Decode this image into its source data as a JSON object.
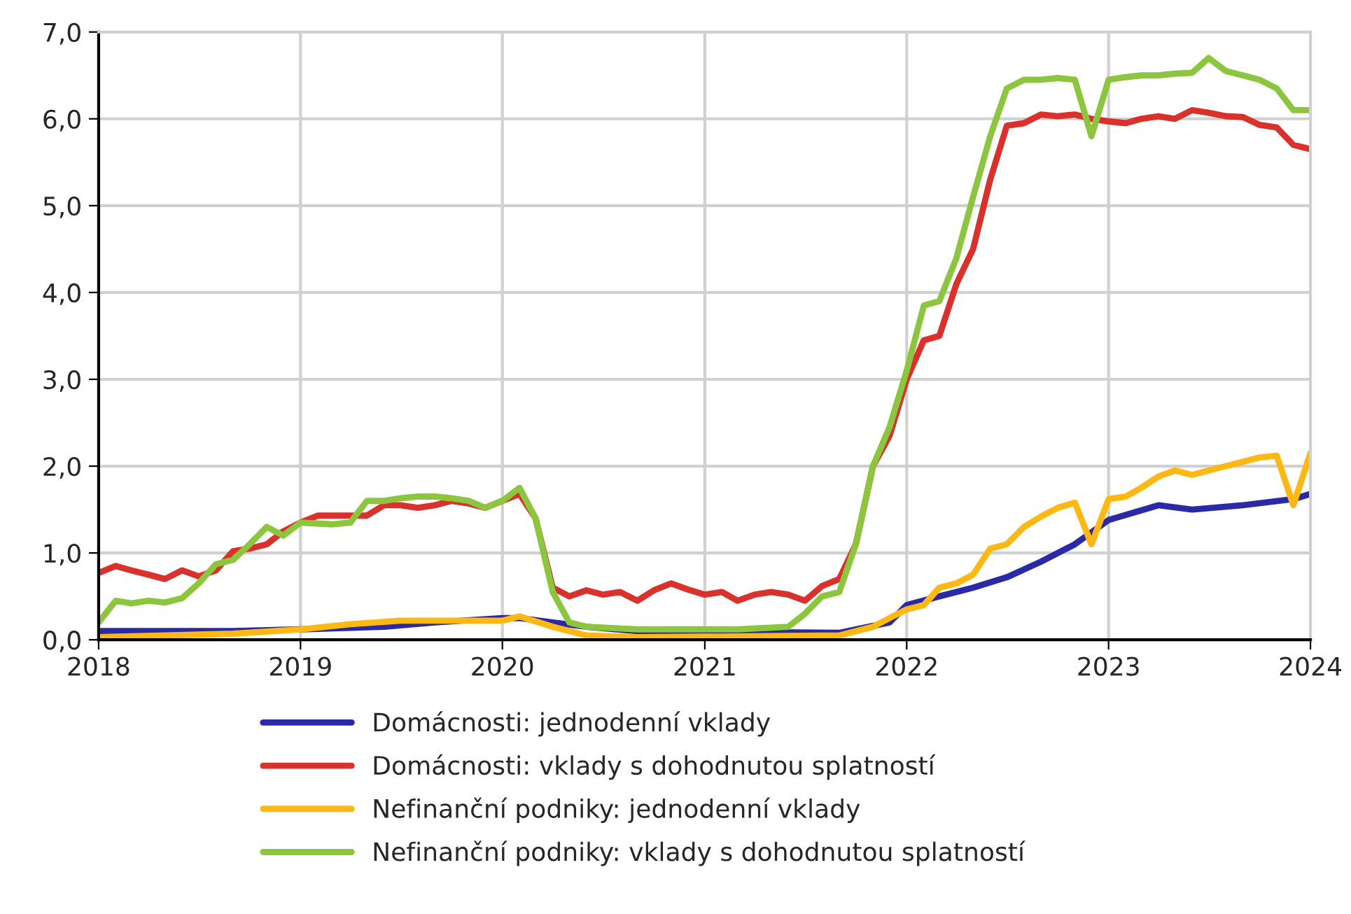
{
  "chart_data": {
    "type": "line",
    "ylim": [
      0,
      7
    ],
    "yticks": [
      {
        "value": 0,
        "label": "0,0"
      },
      {
        "value": 1,
        "label": "1,0"
      },
      {
        "value": 2,
        "label": "2,0"
      },
      {
        "value": 3,
        "label": "3,0"
      },
      {
        "value": 4,
        "label": "4,0"
      },
      {
        "value": 5,
        "label": "5,0"
      },
      {
        "value": 6,
        "label": "6,0"
      },
      {
        "value": 7,
        "label": "7,0"
      }
    ],
    "xlim": [
      "2018-01",
      "2024-01"
    ],
    "xticks": [
      {
        "value": "2018-01",
        "label": "2018"
      },
      {
        "value": "2019-01",
        "label": "2019"
      },
      {
        "value": "2020-01",
        "label": "2020"
      },
      {
        "value": "2021-01",
        "label": "2021"
      },
      {
        "value": "2022-01",
        "label": "2022"
      },
      {
        "value": "2023-01",
        "label": "2023"
      },
      {
        "value": "2024-01",
        "label": "2024"
      }
    ],
    "grid": true,
    "legend": "bottom",
    "marker": "none",
    "line_style": "solid",
    "series": [
      {
        "name": "Domácnosti: jednodenní vklady",
        "color": "#2a2aa6",
        "x": [
          "2018-01",
          "2018-09",
          "2019-01",
          "2019-06",
          "2019-09",
          "2020-01",
          "2020-02",
          "2020-04",
          "2020-06",
          "2020-09",
          "2021-09",
          "2021-10",
          "2021-12",
          "2022-01",
          "2022-03",
          "2022-05",
          "2022-07",
          "2022-09",
          "2022-11",
          "2023-01",
          "2023-04",
          "2023-06",
          "2023-09",
          "2023-12",
          "2024-01"
        ],
        "values": [
          0.1,
          0.1,
          0.12,
          0.15,
          0.2,
          0.25,
          0.25,
          0.2,
          0.15,
          0.1,
          0.08,
          0.12,
          0.2,
          0.4,
          0.5,
          0.6,
          0.72,
          0.9,
          1.1,
          1.38,
          1.55,
          1.5,
          1.55,
          1.62,
          1.68
        ]
      },
      {
        "name": "Domácnosti: vklady s dohodnutou splatností",
        "color": "#d9312b",
        "x": [
          "2018-01",
          "2018-02",
          "2018-03",
          "2018-04",
          "2018-05",
          "2018-06",
          "2018-07",
          "2018-08",
          "2018-09",
          "2018-10",
          "2018-11",
          "2018-12",
          "2019-01",
          "2019-02",
          "2019-05",
          "2019-06",
          "2019-07",
          "2019-08",
          "2019-09",
          "2019-10",
          "2019-11",
          "2019-12",
          "2020-01",
          "2020-02",
          "2020-03",
          "2020-04",
          "2020-05",
          "2020-06",
          "2020-07",
          "2020-08",
          "2020-09",
          "2020-10",
          "2020-11",
          "2020-12",
          "2021-01",
          "2021-02",
          "2021-03",
          "2021-04",
          "2021-05",
          "2021-06",
          "2021-07",
          "2021-08",
          "2021-09",
          "2021-10",
          "2021-11",
          "2021-12",
          "2022-01",
          "2022-02",
          "2022-03",
          "2022-04",
          "2022-05",
          "2022-06",
          "2022-07",
          "2022-08",
          "2022-09",
          "2022-10",
          "2022-11",
          "2022-12",
          "2023-01",
          "2023-02",
          "2023-03",
          "2023-04",
          "2023-05",
          "2023-06",
          "2023-07",
          "2023-08",
          "2023-09",
          "2023-10",
          "2023-11",
          "2023-12",
          "2024-01"
        ],
        "values": [
          0.77,
          0.85,
          0.8,
          0.75,
          0.7,
          0.8,
          0.73,
          0.8,
          1.02,
          1.05,
          1.1,
          1.25,
          1.35,
          1.43,
          1.43,
          1.55,
          1.55,
          1.52,
          1.55,
          1.6,
          1.57,
          1.52,
          1.6,
          1.68,
          1.4,
          0.6,
          0.5,
          0.57,
          0.52,
          0.55,
          0.45,
          0.57,
          0.65,
          0.58,
          0.52,
          0.55,
          0.45,
          0.52,
          0.55,
          0.52,
          0.45,
          0.62,
          0.7,
          1.1,
          2.0,
          2.35,
          3.0,
          3.45,
          3.5,
          4.1,
          4.5,
          5.3,
          5.92,
          5.95,
          6.05,
          6.03,
          6.05,
          6.0,
          5.97,
          5.95,
          6.0,
          6.03,
          6.0,
          6.1,
          6.07,
          6.03,
          6.02,
          5.93,
          5.9,
          5.7,
          5.65
        ]
      },
      {
        "name": "Nefinanční podniky: jednodenní vklady",
        "color": "#fdb813",
        "x": [
          "2018-01",
          "2018-09",
          "2019-01",
          "2019-04",
          "2019-07",
          "2020-01",
          "2020-02",
          "2020-04",
          "2020-06",
          "2020-09",
          "2021-09",
          "2021-11",
          "2021-12",
          "2022-01",
          "2022-02",
          "2022-03",
          "2022-04",
          "2022-05",
          "2022-06",
          "2022-07",
          "2022-08",
          "2022-09",
          "2022-10",
          "2022-11",
          "2022-12",
          "2023-01",
          "2023-02",
          "2023-03",
          "2023-04",
          "2023-05",
          "2023-06",
          "2023-07",
          "2023-08",
          "2023-09",
          "2023-10",
          "2023-11",
          "2023-12",
          "2024-01"
        ],
        "values": [
          0.03,
          0.07,
          0.12,
          0.18,
          0.22,
          0.22,
          0.27,
          0.15,
          0.05,
          0.03,
          0.05,
          0.15,
          0.25,
          0.35,
          0.4,
          0.6,
          0.65,
          0.75,
          1.05,
          1.1,
          1.3,
          1.42,
          1.52,
          1.58,
          1.1,
          1.62,
          1.65,
          1.75,
          1.88,
          1.95,
          1.9,
          1.95,
          2.0,
          2.05,
          2.1,
          2.12,
          1.55,
          2.15
        ]
      },
      {
        "name": "Nefinanční podniky: vklady s dohodnutou splatností",
        "color": "#8cc63f",
        "x": [
          "2018-01",
          "2018-02",
          "2018-03",
          "2018-04",
          "2018-05",
          "2018-06",
          "2018-07",
          "2018-08",
          "2018-09",
          "2018-10",
          "2018-11",
          "2018-12",
          "2019-01",
          "2019-03",
          "2019-04",
          "2019-05",
          "2019-06",
          "2019-07",
          "2019-08",
          "2019-09",
          "2019-10",
          "2019-11",
          "2019-12",
          "2020-01",
          "2020-02",
          "2020-03",
          "2020-04",
          "2020-05",
          "2020-06",
          "2020-09",
          "2021-03",
          "2021-06",
          "2021-07",
          "2021-08",
          "2021-09",
          "2021-10",
          "2021-11",
          "2021-12",
          "2022-01",
          "2022-02",
          "2022-03",
          "2022-04",
          "2022-05",
          "2022-06",
          "2022-07",
          "2022-08",
          "2022-09",
          "2022-10",
          "2022-11",
          "2022-12",
          "2023-01",
          "2023-02",
          "2023-03",
          "2023-04",
          "2023-05",
          "2023-06",
          "2023-07",
          "2023-08",
          "2023-09",
          "2023-10",
          "2023-11",
          "2023-12",
          "2024-01"
        ],
        "values": [
          0.2,
          0.45,
          0.42,
          0.45,
          0.43,
          0.48,
          0.65,
          0.87,
          0.92,
          1.1,
          1.3,
          1.2,
          1.35,
          1.33,
          1.35,
          1.6,
          1.6,
          1.63,
          1.65,
          1.65,
          1.63,
          1.6,
          1.52,
          1.6,
          1.75,
          1.4,
          0.55,
          0.2,
          0.15,
          0.12,
          0.12,
          0.15,
          0.3,
          0.5,
          0.55,
          1.1,
          2.0,
          2.45,
          3.1,
          3.85,
          3.9,
          4.4,
          5.1,
          5.8,
          6.35,
          6.45,
          6.45,
          6.47,
          6.45,
          5.8,
          6.45,
          6.48,
          6.5,
          6.5,
          6.52,
          6.53,
          6.7,
          6.55,
          6.5,
          6.45,
          6.35,
          6.1,
          6.1
        ]
      }
    ]
  }
}
